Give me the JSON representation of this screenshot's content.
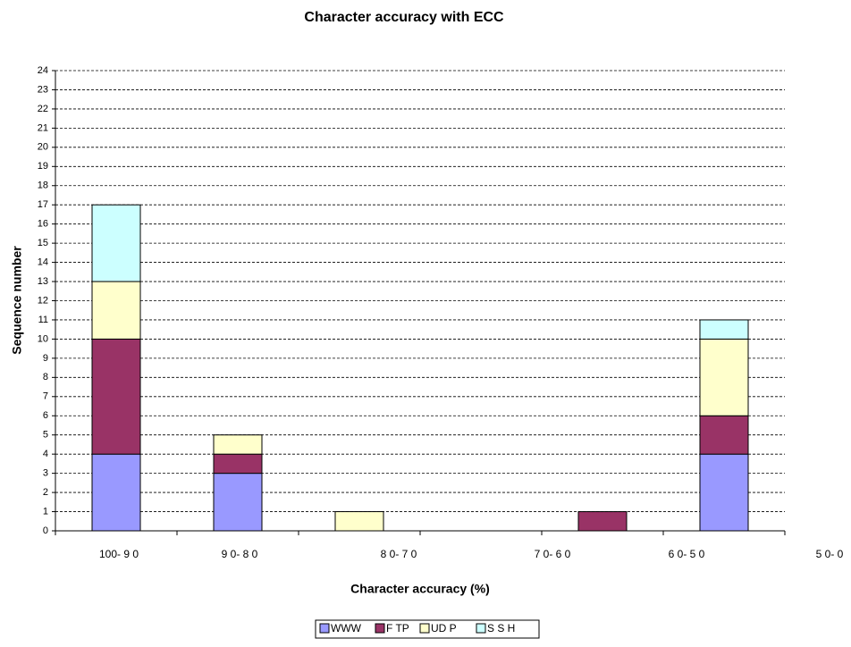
{
  "chart_data": {
    "type": "stacked_bar",
    "title": "Character accuracy with ECC",
    "x_label": "Character accuracy (%)",
    "y_label": "Sequence number",
    "categories": [
      "100- 9 0",
      "9 0- 8 0",
      "8 0- 7 0",
      "7 0- 6 0",
      "6 0- 5 0",
      "5 0- 0"
    ],
    "series": [
      {
        "name": "WWW",
        "color": "#9999ff",
        "values": [
          4,
          3,
          0,
          0,
          0,
          4
        ]
      },
      {
        "name": "F TP",
        "color": "#993366",
        "values": [
          6,
          1,
          0,
          0,
          1,
          2
        ]
      },
      {
        "name": "UD P",
        "color": "#ffffcc",
        "values": [
          3,
          1,
          1,
          0,
          0,
          4
        ]
      },
      {
        "name": "S S H",
        "color": "#ccffff",
        "values": [
          4,
          0,
          0,
          0,
          0,
          1
        ]
      }
    ],
    "ylim": [
      0,
      24
    ],
    "yticks": [
      0,
      1,
      2,
      3,
      4,
      5,
      6,
      7,
      8,
      9,
      10,
      11,
      12,
      13,
      14,
      15,
      16,
      17,
      18,
      19,
      20,
      21,
      22,
      23,
      24
    ],
    "grid": true,
    "legend": "bottom"
  }
}
